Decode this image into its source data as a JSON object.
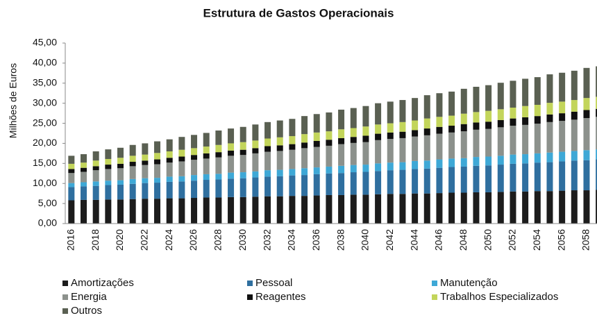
{
  "chart_data": {
    "type": "stacked_bar",
    "title": "Estrutura de Gastos Operacionais",
    "y_label": "Milhões de Euros",
    "categories": [
      "2016",
      null,
      "2018",
      null,
      "2020",
      null,
      "2022",
      null,
      "2024",
      null,
      "2026",
      null,
      "2028",
      null,
      "2030",
      null,
      "2032",
      null,
      "2034",
      null,
      "2036",
      null,
      "2038",
      null,
      "2040",
      null,
      "2042",
      null,
      "2044",
      null,
      "2046",
      null,
      "2048",
      null,
      "2050",
      null,
      "2052",
      null,
      "2054",
      null,
      "2056",
      null,
      "2058",
      null
    ],
    "ylim": [
      0,
      45
    ],
    "yticks": [
      {
        "value": 0,
        "label": "0,00"
      },
      {
        "value": 5,
        "label": "5,00"
      },
      {
        "value": 10,
        "label": "10,00"
      },
      {
        "value": 15,
        "label": "15,00"
      },
      {
        "value": 20,
        "label": "20,00"
      },
      {
        "value": 25,
        "label": "25,00"
      },
      {
        "value": 30,
        "label": "30,00"
      },
      {
        "value": 35,
        "label": "35,00"
      },
      {
        "value": 40,
        "label": "40,00"
      },
      {
        "value": 45,
        "label": "45,00"
      }
    ],
    "series": [
      {
        "name": "Amortizações",
        "color": "#1c1c1c",
        "values": [
          5.8,
          5.9,
          5.9,
          6.0,
          6.0,
          6.1,
          6.2,
          6.2,
          6.3,
          6.3,
          6.4,
          6.5,
          6.5,
          6.6,
          6.6,
          6.7,
          6.8,
          6.8,
          6.9,
          6.9,
          7.0,
          7.1,
          7.1,
          7.2,
          7.2,
          7.3,
          7.4,
          7.4,
          7.5,
          7.5,
          7.6,
          7.7,
          7.7,
          7.8,
          7.8,
          7.9,
          8.0,
          8.0,
          8.1,
          8.1,
          8.2,
          8.3,
          8.3,
          8.4
        ]
      },
      {
        "name": "Pessoal",
        "color": "#2f6f9f",
        "values": [
          3.3,
          3.4,
          3.5,
          3.6,
          3.7,
          3.8,
          3.9,
          4.0,
          4.1,
          4.2,
          4.3,
          4.4,
          4.5,
          4.6,
          4.7,
          4.8,
          4.9,
          5.0,
          5.1,
          5.2,
          5.3,
          5.4,
          5.5,
          5.6,
          5.7,
          5.8,
          5.9,
          6.0,
          6.1,
          6.2,
          6.3,
          6.4,
          6.5,
          6.6,
          6.7,
          6.8,
          6.9,
          7.0,
          7.1,
          7.2,
          7.3,
          7.4,
          7.5,
          7.6
        ]
      },
      {
        "name": "Manutenção",
        "color": "#3ea8d6",
        "values": [
          1.0,
          1.0,
          1.1,
          1.1,
          1.1,
          1.2,
          1.2,
          1.2,
          1.3,
          1.3,
          1.4,
          1.4,
          1.4,
          1.5,
          1.5,
          1.5,
          1.6,
          1.6,
          1.6,
          1.7,
          1.7,
          1.7,
          1.8,
          1.8,
          1.8,
          1.9,
          1.9,
          1.9,
          2.0,
          2.0,
          2.1,
          2.1,
          2.1,
          2.2,
          2.2,
          2.2,
          2.3,
          2.3,
          2.3,
          2.4,
          2.4,
          2.4,
          2.5,
          2.5
        ]
      },
      {
        "name": "Energia",
        "color": "#8c918c",
        "values": [
          2.5,
          2.6,
          2.8,
          2.9,
          3.0,
          3.2,
          3.3,
          3.4,
          3.5,
          3.7,
          3.8,
          3.9,
          4.1,
          4.2,
          4.3,
          4.5,
          4.6,
          4.7,
          4.8,
          5.0,
          5.1,
          5.2,
          5.4,
          5.5,
          5.6,
          5.8,
          5.9,
          6.0,
          6.1,
          6.3,
          6.4,
          6.5,
          6.7,
          6.8,
          6.9,
          7.1,
          7.2,
          7.3,
          7.4,
          7.6,
          7.7,
          7.8,
          8.0,
          8.1
        ]
      },
      {
        "name": "Reagentes",
        "color": "#101010",
        "values": [
          1.0,
          1.0,
          1.0,
          1.1,
          1.1,
          1.1,
          1.1,
          1.2,
          1.2,
          1.2,
          1.2,
          1.3,
          1.3,
          1.3,
          1.3,
          1.3,
          1.4,
          1.4,
          1.4,
          1.4,
          1.5,
          1.5,
          1.5,
          1.5,
          1.6,
          1.6,
          1.6,
          1.6,
          1.6,
          1.7,
          1.7,
          1.7,
          1.8,
          1.8,
          1.8,
          1.8,
          1.8,
          1.9,
          1.9,
          1.9,
          1.9,
          2.0,
          2.0,
          2.0
        ]
      },
      {
        "name": "Trabalhos Especializados",
        "color": "#c3d55b",
        "values": [
          1.3,
          1.3,
          1.4,
          1.4,
          1.5,
          1.5,
          1.5,
          1.6,
          1.6,
          1.7,
          1.7,
          1.7,
          1.8,
          1.8,
          1.9,
          1.9,
          1.9,
          2.0,
          2.0,
          2.1,
          2.1,
          2.1,
          2.2,
          2.2,
          2.3,
          2.3,
          2.3,
          2.4,
          2.4,
          2.5,
          2.5,
          2.5,
          2.6,
          2.6,
          2.7,
          2.7,
          2.7,
          2.8,
          2.8,
          2.9,
          2.9,
          2.9,
          3.0,
          3.0
        ]
      },
      {
        "name": "Outros",
        "color": "#5a6052",
        "values": [
          2.0,
          2.1,
          2.3,
          2.4,
          2.5,
          2.7,
          2.8,
          2.9,
          3.0,
          3.2,
          3.3,
          3.4,
          3.6,
          3.7,
          3.8,
          4.0,
          4.1,
          4.2,
          4.3,
          4.5,
          4.6,
          4.7,
          4.9,
          5.0,
          5.1,
          5.3,
          5.4,
          5.5,
          5.6,
          5.8,
          5.9,
          6.0,
          6.2,
          6.3,
          6.4,
          6.6,
          6.7,
          6.8,
          6.9,
          7.1,
          7.2,
          7.3,
          7.5,
          7.6
        ]
      }
    ]
  }
}
